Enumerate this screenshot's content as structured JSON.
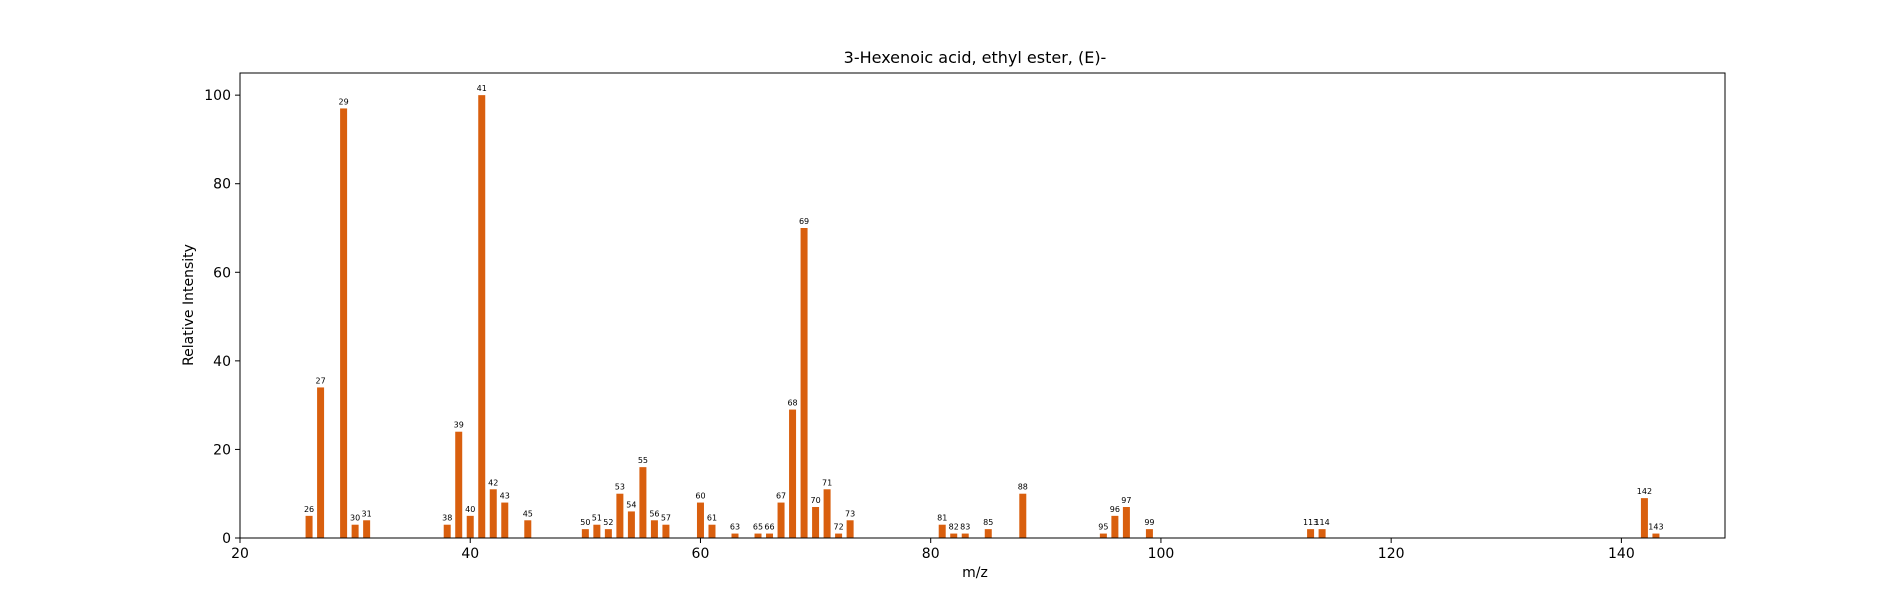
{
  "chart_data": {
    "type": "bar",
    "title": "3-Hexenoic acid, ethyl ester, (E)-",
    "xlabel": "m/z",
    "ylabel": "Relative Intensity",
    "xlim": [
      20,
      149
    ],
    "ylim": [
      0,
      105
    ],
    "xticks": [
      20,
      40,
      60,
      80,
      100,
      120,
      140
    ],
    "yticks": [
      0,
      20,
      40,
      60,
      80,
      100
    ],
    "grid": false,
    "legend": "none",
    "bar_color": "#d95f0e",
    "x": [
      26,
      27,
      29,
      30,
      31,
      38,
      39,
      40,
      41,
      42,
      43,
      45,
      50,
      51,
      52,
      53,
      54,
      55,
      56,
      57,
      60,
      61,
      63,
      65,
      66,
      67,
      68,
      69,
      70,
      71,
      72,
      73,
      81,
      82,
      83,
      85,
      88,
      95,
      96,
      97,
      99,
      113,
      114,
      142,
      143
    ],
    "values": [
      5,
      34,
      97,
      3,
      4,
      3,
      24,
      5,
      100,
      11,
      8,
      4,
      2,
      3,
      2,
      10,
      6,
      16,
      4,
      3,
      8,
      3,
      1,
      1,
      1,
      8,
      29,
      70,
      7,
      11,
      1,
      4,
      3,
      1,
      1,
      2,
      10,
      1,
      5,
      7,
      2,
      2,
      2,
      9,
      1
    ],
    "labels": [
      "26",
      "27",
      "29",
      "30",
      "31",
      "38",
      "39",
      "40",
      "41",
      "42",
      "43",
      "45",
      "50",
      "51",
      "52",
      "53",
      "54",
      "55",
      "56",
      "57",
      "60",
      "61",
      "63",
      "65",
      "66",
      "67",
      "68",
      "69",
      "70",
      "71",
      "72",
      "73",
      "81",
      "82",
      "83",
      "85",
      "88",
      "95",
      "96",
      "97",
      "99",
      "113",
      "114",
      "142",
      "143"
    ]
  }
}
